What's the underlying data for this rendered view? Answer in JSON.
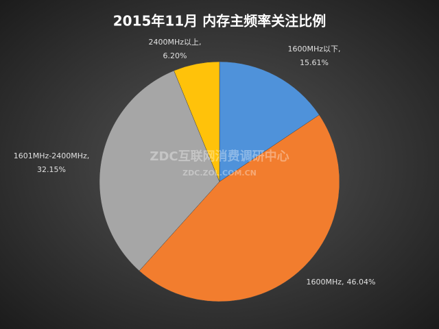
{
  "chart_data": {
    "type": "pie",
    "title": "2015年11月  内存主频率关注比例",
    "categories": [
      "1600MHz以下,",
      "1600MHz,",
      "1601MHz-2400MHz,",
      "2400MHz以上,"
    ],
    "values": [
      15.61,
      46.04,
      32.15,
      6.2
    ],
    "value_labels": [
      "15.61%",
      "46.04%",
      "32.15%",
      "6.20%"
    ],
    "colors": [
      "#4f92da",
      "#f27d2e",
      "#a6a6a6",
      "#ffc20a"
    ],
    "watermark": [
      "ZDC互联网消费调研中心",
      "ZDC.ZOL.COM.CN"
    ]
  }
}
